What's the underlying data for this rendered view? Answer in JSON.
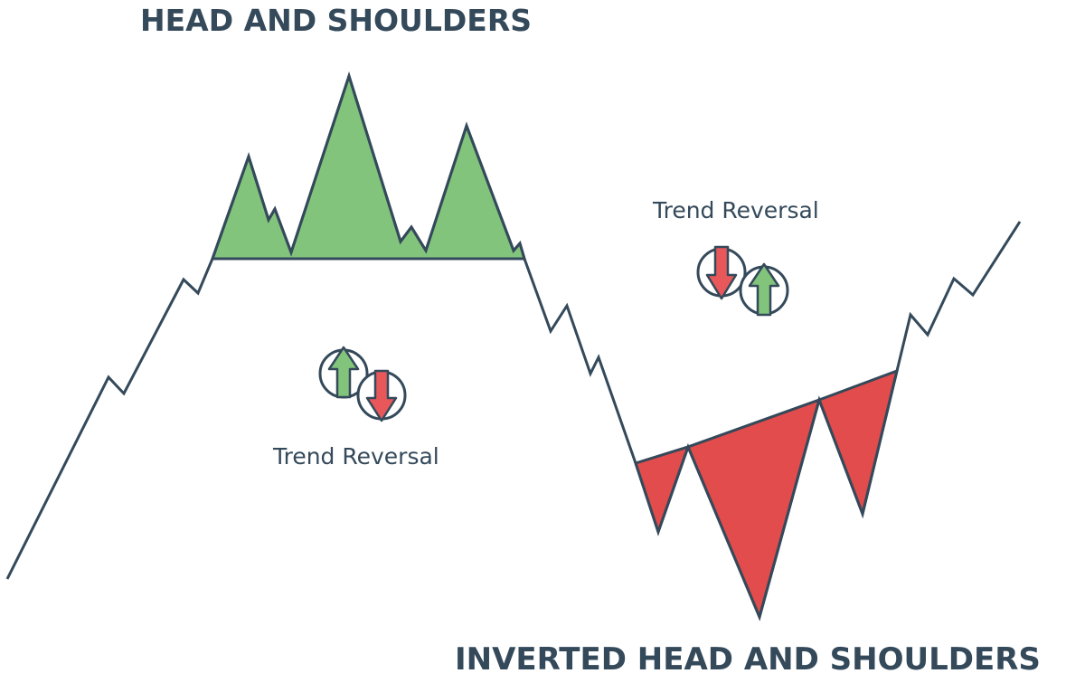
{
  "titles": {
    "head_and_shoulders": "HEAD AND SHOULDERS",
    "inverted_head_and_shoulders": "INVERTED HEAD AND SHOULDERS"
  },
  "captions": {
    "trend_reversal_left": "Trend Reversal",
    "trend_reversal_right": "Trend Reversal"
  },
  "colors": {
    "line": "#34495a",
    "head_shoulders_fill": "#82c47c",
    "inverted_fill": "#e34c4c",
    "up_arrow": "#82c47c",
    "down_arrow": "#e8585a",
    "text": "#34495a"
  },
  "icons": {
    "left_pair": [
      "arrow-up-icon",
      "arrow-down-icon"
    ],
    "right_pair": [
      "arrow-down-icon",
      "arrow-up-icon"
    ]
  }
}
